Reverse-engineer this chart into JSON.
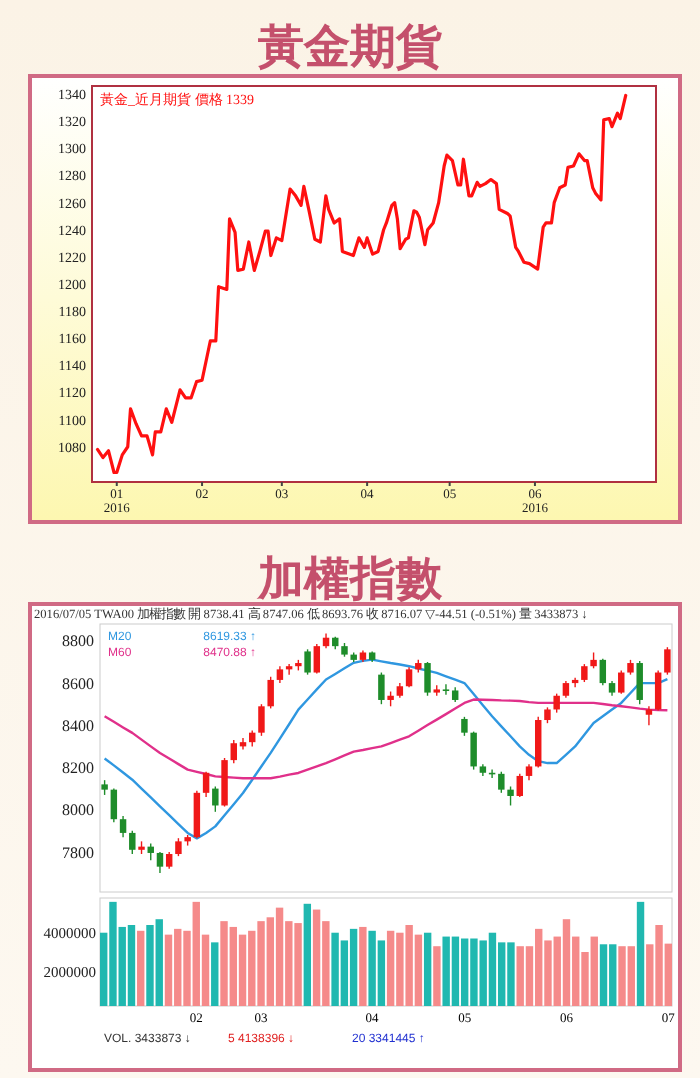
{
  "chart_data": [
    {
      "type": "line",
      "title": "黃金期貨",
      "annotations": [
        "黃金_近月期貨 價格 1339"
      ],
      "color": "#ff1010",
      "x": [
        "2015-12-25",
        "2015-12-27",
        "2015-12-29",
        "2015-12-31",
        "2016-01-01",
        "2016-01-03",
        "2016-01-05",
        "2016-01-06",
        "2016-01-08",
        "2016-01-10",
        "2016-01-12",
        "2016-01-14",
        "2016-01-15",
        "2016-01-17",
        "2016-01-19",
        "2016-01-21",
        "2016-01-24",
        "2016-01-26",
        "2016-01-28",
        "2016-01-30",
        "2016-02-01",
        "2016-02-04",
        "2016-02-06",
        "2016-02-07",
        "2016-02-10",
        "2016-02-11",
        "2016-02-13",
        "2016-02-14",
        "2016-02-16",
        "2016-02-18",
        "2016-02-20",
        "2016-02-22",
        "2016-02-24",
        "2016-02-25",
        "2016-02-26",
        "2016-02-28",
        "2016-03-01",
        "2016-03-04",
        "2016-03-06",
        "2016-03-08",
        "2016-03-09",
        "2016-03-11",
        "2016-03-13",
        "2016-03-15",
        "2016-03-17",
        "2016-03-18",
        "2016-03-20",
        "2016-03-22",
        "2016-03-23",
        "2016-03-27",
        "2016-03-29",
        "2016-03-31",
        "2016-04-01",
        "2016-04-03",
        "2016-04-05",
        "2016-04-07",
        "2016-04-08",
        "2016-04-10",
        "2016-04-11",
        "2016-04-12",
        "2016-04-13",
        "2016-04-15",
        "2016-04-16",
        "2016-04-18",
        "2016-04-19",
        "2016-04-20",
        "2016-04-22",
        "2016-04-23",
        "2016-04-25",
        "2016-04-27",
        "2016-04-29",
        "2016-04-30",
        "2016-05-02",
        "2016-05-04",
        "2016-05-05",
        "2016-05-06",
        "2016-05-08",
        "2016-05-09",
        "2016-05-11",
        "2016-05-12",
        "2016-05-14",
        "2016-05-16",
        "2016-05-18",
        "2016-05-19",
        "2016-05-22",
        "2016-05-23",
        "2016-05-25",
        "2016-05-26",
        "2016-05-28",
        "2016-05-30",
        "2016-06-02",
        "2016-06-04",
        "2016-06-05",
        "2016-06-07",
        "2016-06-08",
        "2016-06-10",
        "2016-06-12",
        "2016-06-13",
        "2016-06-15",
        "2016-06-17",
        "2016-06-19",
        "2016-06-20",
        "2016-06-22",
        "2016-06-23",
        "2016-06-25",
        "2016-06-26",
        "2016-06-28",
        "2016-06-29",
        "2016-07-01",
        "2016-07-02",
        "2016-07-04"
      ],
      "values": [
        1078,
        1072,
        1077,
        1061,
        1061,
        1074,
        1080,
        1108,
        1097,
        1088,
        1088,
        1074,
        1091,
        1091,
        1108,
        1098,
        1122,
        1116,
        1116,
        1128,
        1129,
        1158,
        1158,
        1198,
        1196,
        1248,
        1238,
        1210,
        1211,
        1231,
        1210,
        1224,
        1239,
        1239,
        1221,
        1234,
        1232,
        1270,
        1265,
        1258,
        1272,
        1253,
        1233,
        1231,
        1265,
        1255,
        1245,
        1248,
        1224,
        1221,
        1234,
        1227,
        1234,
        1222,
        1224,
        1240,
        1245,
        1258,
        1260,
        1248,
        1226,
        1233,
        1234,
        1254,
        1253,
        1249,
        1229,
        1240,
        1245,
        1260,
        1287,
        1295,
        1291,
        1273,
        1273,
        1292,
        1265,
        1265,
        1275,
        1272,
        1274,
        1277,
        1274,
        1255,
        1252,
        1250,
        1227,
        1224,
        1216,
        1215,
        1211,
        1242,
        1245,
        1245,
        1260,
        1271,
        1273,
        1286,
        1287,
        1296,
        1291,
        1291,
        1271,
        1267,
        1262,
        1321,
        1322,
        1316,
        1326,
        1322,
        1339
      ],
      "xlim": [
        "2015-12-23",
        "2016-07-15"
      ],
      "xticks": [
        {
          "value": "2016-01-01",
          "label": "01\n2016"
        },
        {
          "value": "2016-02-01",
          "label": "02"
        },
        {
          "value": "2016-03-01",
          "label": "03"
        },
        {
          "value": "2016-04-01",
          "label": "04"
        },
        {
          "value": "2016-05-01",
          "label": "05"
        },
        {
          "value": "2016-06-01",
          "label": "06\n2016"
        }
      ],
      "ylim": [
        1054,
        1346
      ],
      "yticks": [
        1080,
        1100,
        1120,
        1140,
        1160,
        1180,
        1200,
        1220,
        1240,
        1260,
        1280,
        1300,
        1320,
        1340
      ]
    },
    {
      "type": "candlestick",
      "title": "加權指數",
      "subtitle": "2016/07/05  TWA00 加權指數 開 8738.41 高 8747.06 低 8693.76 收 8716.07 ▽-44.51 (-0.51%) 量 3433873 ↓",
      "annotations": [
        "8619.33 ↑",
        "8470.88 ↑"
      ],
      "legend": "top left",
      "tick_labels": "y",
      "categories": [
        null,
        null,
        null,
        null,
        null,
        null,
        null,
        null,
        null,
        null,
        null,
        null,
        null,
        null,
        null,
        null,
        null,
        null,
        null,
        null,
        null,
        null,
        null,
        null,
        null,
        null,
        null,
        null,
        null,
        null,
        null,
        null,
        null,
        null,
        null,
        null,
        null,
        null,
        null,
        null,
        null,
        null,
        null,
        null,
        null,
        null,
        null,
        null,
        null,
        null,
        null,
        null,
        null,
        null,
        null,
        null,
        null,
        null,
        null,
        null,
        null,
        null
      ],
      "ohlc": [
        [
          8120,
          8140,
          8070,
          8095
        ],
        [
          8095,
          8100,
          7940,
          7955
        ],
        [
          7955,
          7970,
          7870,
          7890
        ],
        [
          7890,
          7900,
          7790,
          7810
        ],
        [
          7810,
          7850,
          7790,
          7825
        ],
        [
          7825,
          7840,
          7760,
          7795
        ],
        [
          7795,
          7800,
          7700,
          7730
        ],
        [
          7730,
          7800,
          7720,
          7790
        ],
        [
          7790,
          7865,
          7780,
          7850
        ],
        [
          7850,
          7880,
          7830,
          7870
        ],
        [
          7870,
          8090,
          7865,
          8080
        ],
        [
          8080,
          8180,
          8060,
          8175
        ],
        [
          8100,
          8110,
          7990,
          8020
        ],
        [
          8020,
          8245,
          8015,
          8235
        ],
        [
          8235,
          8330,
          8220,
          8315
        ],
        [
          8300,
          8340,
          8285,
          8320
        ],
        [
          8320,
          8375,
          8300,
          8365
        ],
        [
          8365,
          8500,
          8350,
          8490
        ],
        [
          8490,
          8630,
          8480,
          8615
        ],
        [
          8615,
          8680,
          8600,
          8665
        ],
        [
          8665,
          8690,
          8640,
          8680
        ],
        [
          8680,
          8710,
          8660,
          8695
        ],
        [
          8750,
          8760,
          8640,
          8650
        ],
        [
          8650,
          8785,
          8645,
          8775
        ],
        [
          8775,
          8835,
          8765,
          8815
        ],
        [
          8815,
          8820,
          8760,
          8775
        ],
        [
          8775,
          8790,
          8725,
          8735
        ],
        [
          8735,
          8745,
          8700,
          8710
        ],
        [
          8710,
          8755,
          8700,
          8745
        ],
        [
          8745,
          8750,
          8700,
          8710
        ],
        [
          8640,
          8650,
          8500,
          8520
        ],
        [
          8520,
          8560,
          8490,
          8540
        ],
        [
          8540,
          8600,
          8530,
          8585
        ],
        [
          8585,
          8675,
          8580,
          8665
        ],
        [
          8665,
          8710,
          8650,
          8695
        ],
        [
          8695,
          8700,
          8540,
          8555
        ],
        [
          8555,
          8590,
          8540,
          8570
        ],
        [
          8570,
          8595,
          8545,
          8565
        ],
        [
          8565,
          8580,
          8510,
          8520
        ],
        [
          8430,
          8440,
          8350,
          8365
        ],
        [
          8365,
          8370,
          8190,
          8205
        ],
        [
          8205,
          8215,
          8160,
          8175
        ],
        [
          8175,
          8190,
          8150,
          8170
        ],
        [
          8170,
          8180,
          8080,
          8095
        ],
        [
          8095,
          8110,
          8020,
          8065
        ],
        [
          8065,
          8170,
          8060,
          8160
        ],
        [
          8160,
          8215,
          8140,
          8205
        ],
        [
          8205,
          8440,
          8200,
          8425
        ],
        [
          8425,
          8485,
          8410,
          8475
        ],
        [
          8475,
          8550,
          8460,
          8540
        ],
        [
          8540,
          8610,
          8530,
          8600
        ],
        [
          8600,
          8625,
          8580,
          8615
        ],
        [
          8615,
          8690,
          8605,
          8680
        ],
        [
          8680,
          8745,
          8670,
          8710
        ],
        [
          8710,
          8715,
          8590,
          8600
        ],
        [
          8600,
          8610,
          8540,
          8555
        ],
        [
          8555,
          8660,
          8550,
          8650
        ],
        [
          8650,
          8710,
          8640,
          8695
        ],
        [
          8695,
          8705,
          8500,
          8520
        ],
        [
          8450,
          8490,
          8400,
          8475
        ],
        [
          8475,
          8660,
          8470,
          8650
        ],
        [
          8650,
          8770,
          8640,
          8760
        ]
      ],
      "colors": [
        "#1e8c2a",
        "#1e8c2a",
        "#1e8c2a",
        "#1e8c2a",
        "#f01818",
        "#1e8c2a",
        "#1e8c2a",
        "#f01818",
        "#f01818",
        "#f01818",
        "#f01818",
        "#f01818",
        "#1e8c2a",
        "#f01818",
        "#f01818",
        "#f01818",
        "#f01818",
        "#f01818",
        "#f01818",
        "#f01818",
        "#f01818",
        "#f01818",
        "#1e8c2a",
        "#f01818",
        "#f01818",
        "#1e8c2a",
        "#1e8c2a",
        "#1e8c2a",
        "#f01818",
        "#1e8c2a",
        "#1e8c2a",
        "#f01818",
        "#f01818",
        "#f01818",
        "#f01818",
        "#1e8c2a",
        "#f01818",
        "#1e8c2a",
        "#1e8c2a",
        "#1e8c2a",
        "#1e8c2a",
        "#1e8c2a",
        "#1e8c2a",
        "#1e8c2a",
        "#1e8c2a",
        "#f01818",
        "#f01818",
        "#f01818",
        "#f01818",
        "#f01818",
        "#f01818",
        "#f01818",
        "#f01818",
        "#f01818",
        "#1e8c2a",
        "#1e8c2a",
        "#f01818",
        "#f01818",
        "#1e8c2a",
        "#f01818",
        "#f01818",
        "#f01818"
      ],
      "series": [
        {
          "type": "line",
          "name": "M20",
          "color": "#2f97e0",
          "values": [
            8243,
            8210,
            8176,
            8142,
            8100,
            8058,
            8016,
            7974,
            7932,
            7890,
            7864,
            7890,
            7921,
            7974,
            8026,
            8079,
            8142,
            8206,
            8269,
            8337,
            8405,
            8474,
            8522,
            8570,
            8617,
            8643,
            8670,
            8696,
            8705,
            8711,
            8703,
            8695,
            8688,
            8680,
            8669,
            8659,
            8648,
            8632,
            8616,
            8600,
            8548,
            8495,
            8443,
            8395,
            8348,
            8300,
            8260,
            8230,
            8221,
            8221,
            8260,
            8300,
            8355,
            8411,
            8443,
            8475,
            8506,
            8553,
            8600,
            8600,
            8600,
            8619
          ]
        },
        {
          "type": "line",
          "name": "M60",
          "color": "#e0308a",
          "values": [
            8443,
            8417,
            8390,
            8364,
            8332,
            8300,
            8269,
            8243,
            8216,
            8190,
            8179,
            8169,
            8158,
            8155,
            8152,
            8149,
            8149,
            8149,
            8149,
            8157,
            8166,
            8174,
            8190,
            8205,
            8221,
            8239,
            8257,
            8275,
            8283,
            8292,
            8300,
            8316,
            8332,
            8348,
            8374,
            8401,
            8427,
            8453,
            8480,
            8506,
            8522,
            8521,
            8520,
            8518,
            8517,
            8515,
            8510,
            8506,
            8506,
            8506,
            8506,
            8506,
            8506,
            8506,
            8501,
            8495,
            8490,
            8485,
            8479,
            8474,
            8472,
            8471
          ]
        }
      ],
      "ylim": [
        7610,
        8880
      ],
      "yticks": [
        7800,
        8000,
        8200,
        8400,
        8600,
        8800
      ]
    },
    {
      "type": "bar",
      "annotations": [
        "VOL. 3433873 ↓",
        "5 4138396 ↓",
        "20 3341445 ↑"
      ],
      "categories": [
        null,
        null,
        null,
        null,
        null,
        null,
        null,
        null,
        null,
        null,
        "02",
        null,
        null,
        null,
        null,
        null,
        null,
        "03",
        null,
        null,
        null,
        null,
        null,
        null,
        null,
        null,
        null,
        null,
        null,
        "04",
        null,
        null,
        null,
        null,
        null,
        null,
        null,
        null,
        null,
        "05",
        null,
        null,
        null,
        null,
        null,
        null,
        null,
        null,
        null,
        null,
        "06",
        null,
        null,
        null,
        null,
        null,
        null,
        null,
        null,
        null,
        null,
        "07"
      ],
      "values": [
        4000000,
        5600000,
        4300000,
        4400000,
        4100000,
        4400000,
        4700000,
        3900000,
        4200000,
        4100000,
        5600000,
        3900000,
        3500000,
        4600000,
        4300000,
        3900000,
        4100000,
        4600000,
        4800000,
        5300000,
        4600000,
        4500000,
        5500000,
        5200000,
        4600000,
        4000000,
        3600000,
        4200000,
        4300000,
        4100000,
        3600000,
        4100000,
        4000000,
        4400000,
        3900000,
        4000000,
        3300000,
        3800000,
        3800000,
        3700000,
        3700000,
        3600000,
        4000000,
        3500000,
        3500000,
        3300000,
        3300000,
        4200000,
        3600000,
        3800000,
        4700000,
        3800000,
        3000000,
        3800000,
        3400000,
        3400000,
        3300000,
        3300000,
        5600000,
        3400000,
        4400000,
        3433873
      ],
      "colors": [
        "#20b8b0",
        "#20b8b0",
        "#20b8b0",
        "#20b8b0",
        "#f58a8a",
        "#20b8b0",
        "#20b8b0",
        "#f58a8a",
        "#f58a8a",
        "#f58a8a",
        "#f58a8a",
        "#f58a8a",
        "#20b8b0",
        "#f58a8a",
        "#f58a8a",
        "#f58a8a",
        "#f58a8a",
        "#f58a8a",
        "#f58a8a",
        "#f58a8a",
        "#f58a8a",
        "#f58a8a",
        "#20b8b0",
        "#f58a8a",
        "#f58a8a",
        "#20b8b0",
        "#20b8b0",
        "#20b8b0",
        "#f58a8a",
        "#20b8b0",
        "#20b8b0",
        "#f58a8a",
        "#f58a8a",
        "#f58a8a",
        "#f58a8a",
        "#20b8b0",
        "#f58a8a",
        "#20b8b0",
        "#20b8b0",
        "#20b8b0",
        "#20b8b0",
        "#20b8b0",
        "#20b8b0",
        "#20b8b0",
        "#20b8b0",
        "#f58a8a",
        "#f58a8a",
        "#f58a8a",
        "#f58a8a",
        "#f58a8a",
        "#f58a8a",
        "#f58a8a",
        "#f58a8a",
        "#f58a8a",
        "#20b8b0",
        "#20b8b0",
        "#f58a8a",
        "#f58a8a",
        "#20b8b0",
        "#f58a8a",
        "#f58a8a",
        "#f58a8a"
      ],
      "ylim": [
        200000,
        5800000
      ],
      "yticks": [
        2000000,
        4000000
      ]
    }
  ]
}
